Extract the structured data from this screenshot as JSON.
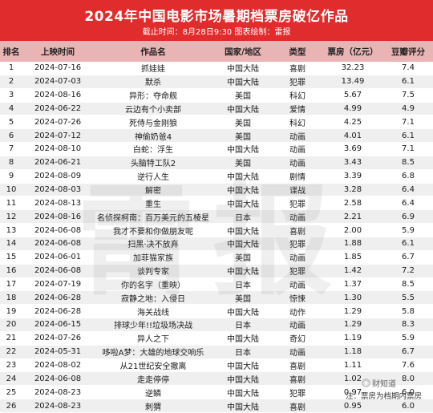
{
  "header": {
    "title": "2024年中国电影市场暑期档票房破亿作品",
    "subtitle": "截止时间：8月28日9:30 图表绘制：雷报"
  },
  "columns": {
    "rank": "排名",
    "date": "上映时间",
    "title": "作品名",
    "region": "国家/地区",
    "genre": "类型",
    "box": "票房（亿元）",
    "score": "豆瓣评分"
  },
  "rows": [
    {
      "rank": "1",
      "date": "2024-07-16",
      "title": "抓娃娃",
      "region": "中国大陆",
      "genre": "喜剧",
      "box": "32.23",
      "score": "7.4"
    },
    {
      "rank": "2",
      "date": "2024-07-03",
      "title": "默杀",
      "region": "中国大陆",
      "genre": "犯罪",
      "box": "13.49",
      "score": "6.1"
    },
    {
      "rank": "3",
      "date": "2024-08-16",
      "title": "异形：夺命舰",
      "region": "美国",
      "genre": "科幻",
      "box": "5.67",
      "score": "7.5"
    },
    {
      "rank": "4",
      "date": "2024-06-22",
      "title": "云边有个小卖部",
      "region": "中国大陆",
      "genre": "爱情",
      "box": "4.99",
      "score": "4.9"
    },
    {
      "rank": "5",
      "date": "2024-07-26",
      "title": "死侍与金刚狼",
      "region": "美国",
      "genre": "科幻",
      "box": "4.25",
      "score": "7.1"
    },
    {
      "rank": "6",
      "date": "2024-07-12",
      "title": "神偷奶爸4",
      "region": "美国",
      "genre": "动画",
      "box": "4.01",
      "score": "6.1"
    },
    {
      "rank": "7",
      "date": "2024-08-10",
      "title": "白蛇：浮生",
      "region": "中国大陆",
      "genre": "动画",
      "box": "3.69",
      "score": "7.1"
    },
    {
      "rank": "8",
      "date": "2024-06-21",
      "title": "头脑特工队2",
      "region": "美国",
      "genre": "动画",
      "box": "3.43",
      "score": "8.5"
    },
    {
      "rank": "9",
      "date": "2024-08-09",
      "title": "逆行人生",
      "region": "中国大陆",
      "genre": "剧情",
      "box": "3.39",
      "score": "6.8"
    },
    {
      "rank": "10",
      "date": "2024-08-03",
      "title": "解密",
      "region": "中国大陆",
      "genre": "谍战",
      "box": "3.28",
      "score": "6.4"
    },
    {
      "rank": "11",
      "date": "2024-08-13",
      "title": "重生",
      "region": "中国大陆",
      "genre": "犯罪",
      "box": "2.58",
      "score": "6.4"
    },
    {
      "rank": "12",
      "date": "2024-08-16",
      "title": "名侦探柯南：百万美元的五棱星",
      "region": "日本",
      "genre": "动画",
      "box": "2.21",
      "score": "6.9"
    },
    {
      "rank": "13",
      "date": "2024-06-08",
      "title": "我才不要和你做朋友呢",
      "region": "中国大陆",
      "genre": "喜剧",
      "box": "2.00",
      "score": "5.9"
    },
    {
      "rank": "14",
      "date": "2024-06-08",
      "title": "扫黑·决不放弃",
      "region": "中国大陆",
      "genre": "犯罪",
      "box": "1.88",
      "score": "6.1"
    },
    {
      "rank": "15",
      "date": "2024-06-01",
      "title": "加菲猫家族",
      "region": "美国",
      "genre": "动画",
      "box": "1.85",
      "score": "6.7"
    },
    {
      "rank": "16",
      "date": "2024-06-08",
      "title": "谈判专家",
      "region": "中国大陆",
      "genre": "犯罪",
      "box": "1.42",
      "score": "7.2"
    },
    {
      "rank": "17",
      "date": "2024-07-19",
      "title": "你的名字（重映）",
      "region": "日本",
      "genre": "动画",
      "box": "1.37",
      "score": "8.5"
    },
    {
      "rank": "18",
      "date": "2024-06-28",
      "title": "寂静之地：入侵日",
      "region": "美国",
      "genre": "惊悚",
      "box": "1.30",
      "score": "5.5"
    },
    {
      "rank": "19",
      "date": "2024-06-28",
      "title": "海关战线",
      "region": "中国大陆",
      "genre": "动作",
      "box": "1.29",
      "score": "5.8"
    },
    {
      "rank": "20",
      "date": "2024-06-15",
      "title": "排球少年!!垃圾场决战",
      "region": "日本",
      "genre": "动画",
      "box": "1.29",
      "score": "8.3"
    },
    {
      "rank": "21",
      "date": "2024-07-26",
      "title": "异人之下",
      "region": "中国大陆",
      "genre": "奇幻",
      "box": "1.19",
      "score": "5.9"
    },
    {
      "rank": "22",
      "date": "2024-05-31",
      "title": "哆啦A梦：大雄的地球交响乐",
      "region": "日本",
      "genre": "动画",
      "box": "1.18",
      "score": "6.7"
    },
    {
      "rank": "23",
      "date": "2024-08-02",
      "title": "从21世纪安全撤离",
      "region": "中国大陆",
      "genre": "喜剧",
      "box": "1.11",
      "score": "7.6"
    },
    {
      "rank": "24",
      "date": "2024-06-08",
      "title": "走走停停",
      "region": "中国大陆",
      "genre": "喜剧",
      "box": "1.02",
      "score": "8.0"
    },
    {
      "rank": "25",
      "date": "2024-08-23",
      "title": "逆鳞",
      "region": "中国大陆",
      "genre": "犯罪",
      "box": "0.97",
      "score": "6.0"
    },
    {
      "rank": "26",
      "date": "2024-08-23",
      "title": "刺猬",
      "region": "中国大陆",
      "genre": "喜剧",
      "box": "0.95",
      "score": "6.0"
    }
  ],
  "watermark": [
    "雷",
    "报"
  ],
  "footer": {
    "brand": "财知道",
    "brand_icon": "logo-icon",
    "note": "注：票房为档期内票房"
  },
  "colors": {
    "header_bg": "#e02c2c",
    "column_header_bg": "#e9b4b4",
    "stripe": "#efefef"
  }
}
